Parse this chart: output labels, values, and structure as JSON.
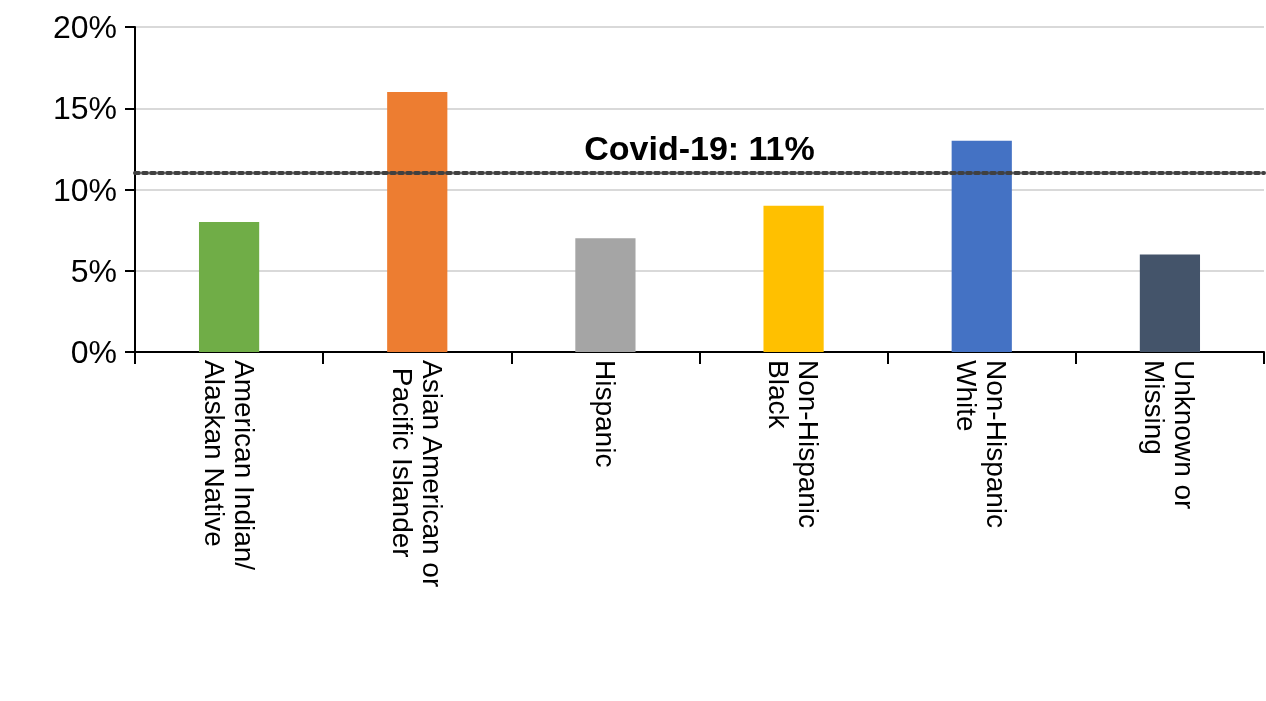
{
  "chart_data": {
    "type": "bar",
    "categories": [
      "American Indian/Alaskan Native",
      "Asian American or Pacific Islander",
      "Hispanic",
      "Non-Hispanic Black",
      "Non-Hispanic White",
      "Unknown or Missing"
    ],
    "values": [
      8,
      16,
      7,
      9,
      13,
      6
    ],
    "colors": [
      "#70ad47",
      "#ed7d31",
      "#a5a5a5",
      "#ffc000",
      "#4472c4",
      "#44546a"
    ],
    "ylim": [
      0,
      20
    ],
    "yticks": [
      {
        "value": 0,
        "label": "0%"
      },
      {
        "value": 5,
        "label": "5%"
      },
      {
        "value": 10,
        "label": "10%"
      },
      {
        "value": 15,
        "label": "15%"
      },
      {
        "value": 20,
        "label": "20%"
      }
    ],
    "grid": "y",
    "ref_lines": [
      {
        "axis": "y",
        "value": 11,
        "label": "Covid-19: 11%",
        "color": "#404040",
        "line_style": "dotted"
      }
    ]
  }
}
